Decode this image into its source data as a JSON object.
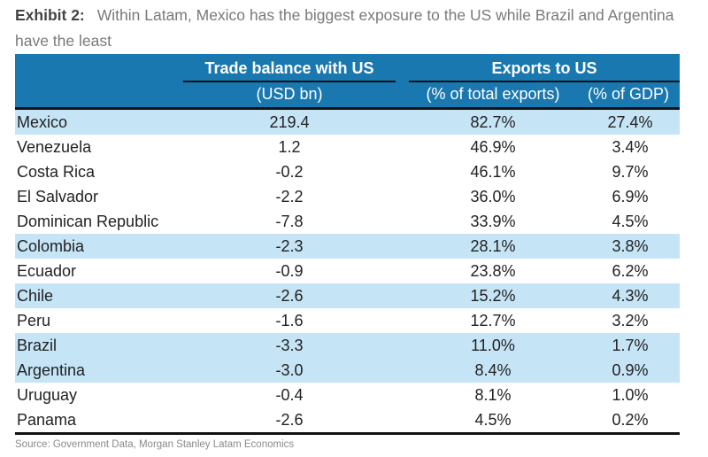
{
  "title": {
    "label": "Exhibit 2:",
    "text": "Within Latam, Mexico has the biggest exposure to the US while Brazil and Argentina have the least"
  },
  "table": {
    "header": {
      "group1": "Trade balance with US",
      "group1_sub": "(USD bn)",
      "group2": "Exports to US",
      "group2_sub1": "(% of total exports)",
      "group2_sub2": "(% of GDP)"
    },
    "rows": [
      {
        "country": "Mexico",
        "trade_balance": "219.4",
        "exports_pct_total": "82.7%",
        "exports_pct_gdp": "27.4%",
        "highlight": true
      },
      {
        "country": "Venezuela",
        "trade_balance": "1.2",
        "exports_pct_total": "46.9%",
        "exports_pct_gdp": "3.4%",
        "highlight": false
      },
      {
        "country": "Costa Rica",
        "trade_balance": "-0.2",
        "exports_pct_total": "46.1%",
        "exports_pct_gdp": "9.7%",
        "highlight": false
      },
      {
        "country": "El Salvador",
        "trade_balance": "-2.2",
        "exports_pct_total": "36.0%",
        "exports_pct_gdp": "6.9%",
        "highlight": false
      },
      {
        "country": "Dominican Republic",
        "trade_balance": "-7.8",
        "exports_pct_total": "33.9%",
        "exports_pct_gdp": "4.5%",
        "highlight": false
      },
      {
        "country": "Colombia",
        "trade_balance": "-2.3",
        "exports_pct_total": "28.1%",
        "exports_pct_gdp": "3.8%",
        "highlight": true
      },
      {
        "country": "Ecuador",
        "trade_balance": "-0.9",
        "exports_pct_total": "23.8%",
        "exports_pct_gdp": "6.2%",
        "highlight": false
      },
      {
        "country": "Chile",
        "trade_balance": "-2.6",
        "exports_pct_total": "15.2%",
        "exports_pct_gdp": "4.3%",
        "highlight": true
      },
      {
        "country": "Peru",
        "trade_balance": "-1.6",
        "exports_pct_total": "12.7%",
        "exports_pct_gdp": "3.2%",
        "highlight": false
      },
      {
        "country": "Brazil",
        "trade_balance": "-3.3",
        "exports_pct_total": "11.0%",
        "exports_pct_gdp": "1.7%",
        "highlight": true
      },
      {
        "country": "Argentina",
        "trade_balance": "-3.0",
        "exports_pct_total": "8.4%",
        "exports_pct_gdp": "0.9%",
        "highlight": true
      },
      {
        "country": "Uruguay",
        "trade_balance": "-0.4",
        "exports_pct_total": "8.1%",
        "exports_pct_gdp": "1.0%",
        "highlight": false
      },
      {
        "country": "Panama",
        "trade_balance": "-2.6",
        "exports_pct_total": "4.5%",
        "exports_pct_gdp": "0.2%",
        "highlight": false
      }
    ]
  },
  "source": "Source: Government Data, Morgan Stanley Latam Economics",
  "colors": {
    "header_bg": "#1a78b0",
    "highlight_row": "#c5e4f6"
  }
}
